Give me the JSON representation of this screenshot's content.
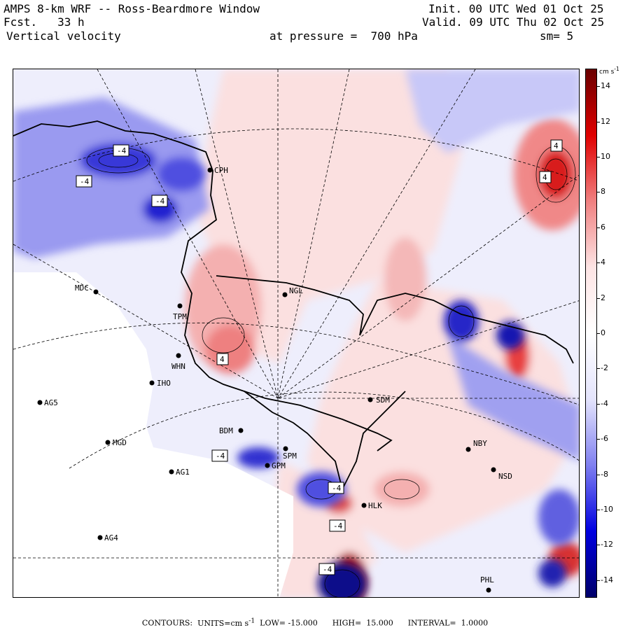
{
  "header": {
    "title": "AMPS 8-km WRF -- Ross-Beardmore Window",
    "forecast": "Fcst.   33 h",
    "field": "Vertical velocity",
    "init": "Init. 00 UTC Wed 01 Oct 25",
    "valid": "Valid. 09 UTC Thu 02 Oct 25",
    "level": "at pressure =  700 hPa",
    "smoothing": "sm= 5"
  },
  "colorbar": {
    "unit": "cm s",
    "unit_exp": "-1",
    "ticks": [
      {
        "label": "14",
        "value": 14
      },
      {
        "label": "12",
        "value": 12
      },
      {
        "label": "10",
        "value": 10
      },
      {
        "label": "8",
        "value": 8
      },
      {
        "label": "6",
        "value": 6
      },
      {
        "label": "4",
        "value": 4
      },
      {
        "label": "2",
        "value": 2
      },
      {
        "label": "0",
        "value": 0
      },
      {
        "label": "-2",
        "value": -2
      },
      {
        "label": "-4",
        "value": -4
      },
      {
        "label": "-6",
        "value": -6
      },
      {
        "label": "-8",
        "value": -8
      },
      {
        "label": "-10",
        "value": -10
      },
      {
        "label": "-12",
        "value": -12
      },
      {
        "label": "-14",
        "value": -14
      }
    ],
    "range": [
      -15,
      15
    ],
    "colors": {
      "dark_red": "#6a0000",
      "red": "#e00000",
      "light_red": "#f08080",
      "pale_red": "#fde4e4",
      "white": "#ffffff",
      "pale_blue": "#e4e4fc",
      "light_blue": "#8080f0",
      "blue": "#0000e0",
      "dark_blue": "#00006a"
    }
  },
  "stations": [
    {
      "id": "CPH"
    },
    {
      "id": "NGL"
    },
    {
      "id": "MDC"
    },
    {
      "id": "TPM"
    },
    {
      "id": "WHN"
    },
    {
      "id": "IHO"
    },
    {
      "id": "AG5"
    },
    {
      "id": "SDM"
    },
    {
      "id": "BDM"
    },
    {
      "id": "MGD"
    },
    {
      "id": "SPM"
    },
    {
      "id": "GPM"
    },
    {
      "id": "AG1"
    },
    {
      "id": "NBY"
    },
    {
      "id": "NSD"
    },
    {
      "id": "HLK"
    },
    {
      "id": "AG4"
    },
    {
      "id": "PHL"
    }
  ],
  "contour_labels": [
    "-4",
    "-4",
    "-4",
    "4",
    "4",
    "4",
    "-4",
    "-4",
    "-4",
    "-4"
  ],
  "footer": {
    "contours_label": "CONTOURS:",
    "units": "UNITS=cm s",
    "units_exp": "-1",
    "low": "LOW= -15.000",
    "high": "HIGH=  15.000",
    "interval": "INTERVAL=  1.0000"
  }
}
